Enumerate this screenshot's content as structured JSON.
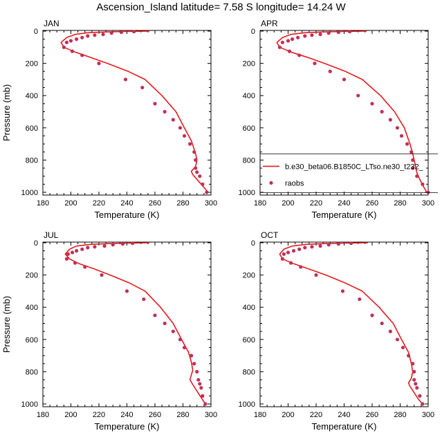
{
  "title": "Ascension_Island  latitude= 7.58 S longitude= 14.24 W",
  "chart_data": [
    {
      "type": "line",
      "panel_label": "JAN",
      "xlabel": "Temperature (K)",
      "ylabel": "Pressure (mb)",
      "xlim": [
        180,
        300
      ],
      "ylim": [
        1000,
        0
      ],
      "xticks": [
        "180",
        "200",
        "220",
        "240",
        "260",
        "280",
        "300"
      ],
      "yticks": [
        "0",
        "200",
        "400",
        "600",
        "800",
        "1000"
      ],
      "series": [
        {
          "name": "b.e30_beta06.B1850C_LTso.ne30_t232_",
          "color": "#e41a1c",
          "x": [
            256,
            240,
            225,
            212,
            203,
            197,
            193,
            195,
            203,
            213,
            226,
            241,
            253,
            265,
            275,
            281,
            286,
            289,
            290,
            289,
            286,
            287,
            291,
            295,
            298
          ],
          "y": [
            0,
            2,
            5,
            10,
            20,
            40,
            70,
            100,
            130,
            160,
            200,
            250,
            300,
            400,
            500,
            600,
            680,
            760,
            800,
            840,
            870,
            890,
            930,
            970,
            1000
          ]
        },
        {
          "name": "raobs",
          "color": "#c0305a",
          "x": [
            245,
            236,
            229,
            223,
            217,
            212,
            208,
            204,
            200,
            197,
            195,
            201,
            208,
            220,
            239,
            251,
            260,
            267,
            273,
            278,
            281,
            285,
            288,
            289,
            289,
            290,
            292,
            294,
            297
          ],
          "y": [
            3,
            7,
            12,
            20,
            25,
            30,
            40,
            50,
            60,
            70,
            100,
            125,
            150,
            200,
            300,
            350,
            450,
            500,
            550,
            600,
            650,
            700,
            750,
            800,
            850,
            875,
            900,
            950,
            1000
          ]
        }
      ]
    },
    {
      "type": "line",
      "panel_label": "APR",
      "xlabel": "Temperature (K)",
      "ylabel": "",
      "xlim": [
        180,
        300
      ],
      "ylim": [
        1000,
        0
      ],
      "xticks": [
        "180",
        "200",
        "220",
        "240",
        "260",
        "280",
        "300"
      ],
      "yticks": [
        "0",
        "200",
        "400",
        "600",
        "800",
        "1000"
      ],
      "legend": [
        {
          "label": "b.e30_beta06.B1850C_LTso.ne30_t232_",
          "marker": "line"
        },
        {
          "label": "raobs",
          "marker": "dot"
        }
      ],
      "series": [
        {
          "name": "b.e30_beta06.B1850C_LTso.ne30_t232_",
          "color": "#e41a1c",
          "x": [
            256,
            240,
            225,
            212,
            202,
            196,
            192,
            194,
            202,
            213,
            226,
            241,
            253,
            266,
            276,
            283,
            287,
            289,
            290,
            291,
            292,
            294,
            297,
            299
          ],
          "y": [
            0,
            2,
            5,
            10,
            20,
            40,
            70,
            100,
            130,
            160,
            200,
            250,
            300,
            400,
            500,
            600,
            700,
            760,
            800,
            840,
            880,
            920,
            970,
            1000
          ]
        },
        {
          "name": "raobs",
          "color": "#c0305a",
          "x": [
            244,
            236,
            229,
            223,
            217,
            212,
            207,
            203,
            200,
            196,
            194,
            201,
            208,
            219,
            230,
            240,
            250,
            260,
            267,
            273,
            278,
            281,
            285,
            288,
            289,
            289,
            292,
            296,
            300
          ],
          "y": [
            3,
            7,
            12,
            20,
            25,
            30,
            40,
            50,
            60,
            70,
            100,
            125,
            150,
            200,
            250,
            300,
            400,
            450,
            500,
            550,
            600,
            650,
            700,
            750,
            800,
            850,
            900,
            950,
            1000
          ]
        }
      ]
    },
    {
      "type": "line",
      "panel_label": "JUL",
      "xlabel": "Temperature (K)",
      "ylabel": "Pressure (mb)",
      "xlim": [
        180,
        300
      ],
      "ylim": [
        1000,
        0
      ],
      "xticks": [
        "180",
        "200",
        "220",
        "240",
        "260",
        "280",
        "300"
      ],
      "yticks": [
        "0",
        "200",
        "400",
        "600",
        "800",
        "1000"
      ],
      "series": [
        {
          "name": "b.e30_beta06.B1850C_LTso.ne30_t232_",
          "color": "#e41a1c",
          "x": [
            256,
            241,
            227,
            214,
            204,
            199,
            196,
            199,
            206,
            216,
            228,
            242,
            253,
            264,
            273,
            279,
            284,
            286,
            287,
            286,
            285,
            287,
            290,
            293,
            296
          ],
          "y": [
            0,
            2,
            5,
            10,
            20,
            40,
            70,
            100,
            130,
            160,
            200,
            250,
            300,
            400,
            500,
            600,
            680,
            740,
            790,
            820,
            850,
            880,
            920,
            960,
            1000
          ]
        },
        {
          "name": "raobs",
          "color": "#c0305a",
          "x": [
            244,
            237,
            230,
            224,
            217,
            212,
            208,
            204,
            201,
            198,
            197,
            203,
            210,
            222,
            240,
            252,
            260,
            267,
            273,
            278,
            281,
            286,
            288,
            290,
            291,
            292,
            293,
            294,
            296
          ],
          "y": [
            3,
            7,
            12,
            20,
            25,
            30,
            40,
            50,
            60,
            70,
            100,
            125,
            150,
            200,
            300,
            350,
            450,
            500,
            550,
            600,
            650,
            700,
            750,
            800,
            850,
            875,
            900,
            950,
            1000
          ]
        }
      ]
    },
    {
      "type": "line",
      "panel_label": "OCT",
      "xlabel": "Temperature (K)",
      "ylabel": "",
      "xlim": [
        180,
        300
      ],
      "ylim": [
        1000,
        0
      ],
      "xticks": [
        "180",
        "200",
        "220",
        "240",
        "260",
        "280",
        "300"
      ],
      "yticks": [
        "0",
        "200",
        "400",
        "600",
        "800",
        "1000"
      ],
      "series": [
        {
          "name": "b.e30_beta06.B1850C_LTso.ne30_t232_",
          "color": "#e41a1c",
          "x": [
            257,
            241,
            226,
            213,
            203,
            197,
            194,
            196,
            204,
            214,
            227,
            241,
            253,
            265,
            275,
            281,
            286,
            288,
            289,
            288,
            286,
            287,
            290,
            293,
            296
          ],
          "y": [
            0,
            2,
            5,
            10,
            20,
            40,
            70,
            100,
            130,
            160,
            200,
            250,
            300,
            400,
            500,
            600,
            680,
            750,
            800,
            840,
            870,
            890,
            930,
            970,
            1000
          ]
        },
        {
          "name": "raobs",
          "color": "#c0305a",
          "x": [
            245,
            236,
            229,
            223,
            217,
            212,
            208,
            204,
            200,
            197,
            196,
            202,
            209,
            220,
            239,
            251,
            260,
            267,
            273,
            278,
            282,
            286,
            289,
            290,
            290,
            291,
            292,
            294,
            296
          ],
          "y": [
            3,
            7,
            12,
            20,
            25,
            30,
            40,
            50,
            60,
            70,
            100,
            125,
            150,
            200,
            300,
            350,
            450,
            500,
            550,
            600,
            650,
            700,
            750,
            800,
            850,
            875,
            900,
            950,
            1000
          ]
        }
      ]
    }
  ]
}
